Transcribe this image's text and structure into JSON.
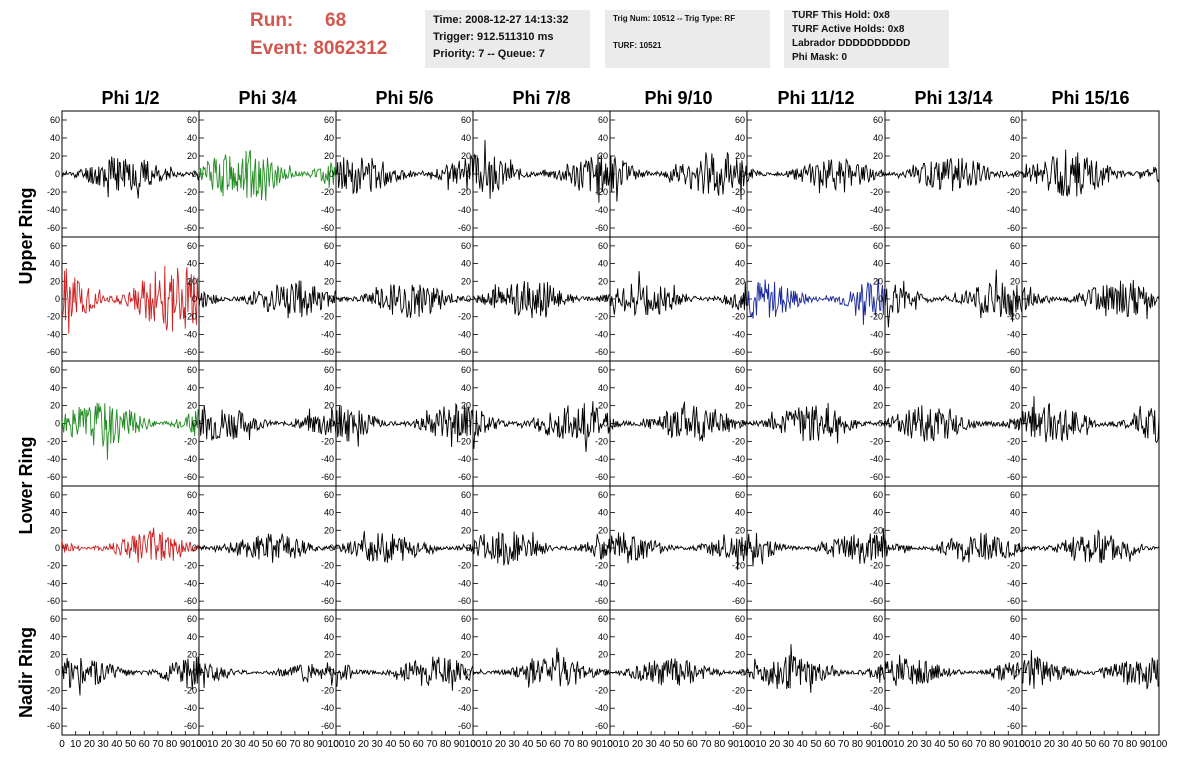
{
  "header": {
    "run_label": "Run:",
    "run_value": "68",
    "event_label": "Event:",
    "event_value": "8062312",
    "time_box": {
      "time": "Time: 2008-12-27 14:13:32",
      "trigger": "Trigger: 912.511310 ms",
      "priority": "Priority: 7 -- Queue: 7"
    },
    "trig_box": {
      "trig": "Trig Num: 10512 -- Trig Type: RF",
      "turf": "TURF: 10521"
    },
    "turf_box": {
      "hold": "TURF This Hold: 0x8",
      "active": "TURF Active Holds: 0x8",
      "labrador": "Labrador DDDDDDDDDD",
      "mask": "Phi Mask: 0"
    }
  },
  "colors": {
    "header_red": "#d2584f",
    "trace_default": "#000000",
    "trace_green": "#228b22",
    "trace_red": "#cc2222",
    "trace_blue": "#1a2a9a",
    "info_bg": "#ebebeb"
  },
  "chart_data": {
    "type": "line",
    "title": "",
    "columns": [
      "Phi 1/2",
      "Phi 3/4",
      "Phi 5/6",
      "Phi 7/8",
      "Phi 9/10",
      "Phi 11/12",
      "Phi 13/14",
      "Phi 15/16"
    ],
    "rows": [
      "Upper Ring",
      "Lower Ring",
      "Nadir Ring"
    ],
    "xlim": [
      0,
      100
    ],
    "ylim": [
      -70,
      70
    ],
    "x_ticks": [
      0,
      10,
      20,
      30,
      40,
      50,
      60,
      70,
      80,
      90,
      100
    ],
    "x_tick_labels": [
      "0",
      "10",
      "20",
      "30",
      "40",
      "50",
      "60",
      "70",
      "80",
      "90",
      "100"
    ],
    "y_ticks": [
      -60,
      -40,
      -20,
      0,
      20,
      40,
      60
    ],
    "y_tick_labels": [
      "-60",
      "-40",
      "-20",
      "0",
      "20",
      "40",
      "60"
    ],
    "panels": [
      {
        "row": 0,
        "col": 0,
        "color": "black",
        "amp": 22,
        "seed": 11
      },
      {
        "row": 0,
        "col": 1,
        "color": "green",
        "amp": 30,
        "seed": 12
      },
      {
        "row": 0,
        "col": 2,
        "color": "black",
        "amp": 22,
        "seed": 13
      },
      {
        "row": 0,
        "col": 3,
        "color": "black",
        "amp": 24,
        "seed": 14
      },
      {
        "row": 0,
        "col": 4,
        "color": "black",
        "amp": 26,
        "seed": 15
      },
      {
        "row": 0,
        "col": 5,
        "color": "black",
        "amp": 18,
        "seed": 16
      },
      {
        "row": 0,
        "col": 6,
        "color": "black",
        "amp": 20,
        "seed": 17
      },
      {
        "row": 0,
        "col": 7,
        "color": "black",
        "amp": 26,
        "seed": 18
      },
      {
        "row": 1,
        "col": 0,
        "color": "red",
        "amp": 40,
        "seed": 21
      },
      {
        "row": 1,
        "col": 1,
        "color": "black",
        "amp": 22,
        "seed": 22
      },
      {
        "row": 1,
        "col": 2,
        "color": "black",
        "amp": 22,
        "seed": 23
      },
      {
        "row": 1,
        "col": 3,
        "color": "black",
        "amp": 22,
        "seed": 24
      },
      {
        "row": 1,
        "col": 4,
        "color": "black",
        "amp": 20,
        "seed": 25
      },
      {
        "row": 1,
        "col": 5,
        "color": "blue",
        "amp": 24,
        "seed": 26
      },
      {
        "row": 1,
        "col": 6,
        "color": "black",
        "amp": 22,
        "seed": 27
      },
      {
        "row": 1,
        "col": 7,
        "color": "black",
        "amp": 22,
        "seed": 28
      },
      {
        "row": 2,
        "col": 0,
        "color": "green",
        "amp": 26,
        "seed": 31
      },
      {
        "row": 2,
        "col": 1,
        "color": "black",
        "amp": 20,
        "seed": 32
      },
      {
        "row": 2,
        "col": 2,
        "color": "black",
        "amp": 22,
        "seed": 33
      },
      {
        "row": 2,
        "col": 3,
        "color": "black",
        "amp": 24,
        "seed": 34
      },
      {
        "row": 2,
        "col": 4,
        "color": "black",
        "amp": 22,
        "seed": 35
      },
      {
        "row": 2,
        "col": 5,
        "color": "black",
        "amp": 22,
        "seed": 36
      },
      {
        "row": 2,
        "col": 6,
        "color": "black",
        "amp": 22,
        "seed": 37
      },
      {
        "row": 2,
        "col": 7,
        "color": "black",
        "amp": 24,
        "seed": 38
      },
      {
        "row": 3,
        "col": 0,
        "color": "red",
        "amp": 20,
        "seed": 41
      },
      {
        "row": 3,
        "col": 1,
        "color": "black",
        "amp": 18,
        "seed": 42
      },
      {
        "row": 3,
        "col": 2,
        "color": "black",
        "amp": 18,
        "seed": 43
      },
      {
        "row": 3,
        "col": 3,
        "color": "black",
        "amp": 20,
        "seed": 44
      },
      {
        "row": 3,
        "col": 4,
        "color": "black",
        "amp": 18,
        "seed": 45
      },
      {
        "row": 3,
        "col": 5,
        "color": "black",
        "amp": 18,
        "seed": 46
      },
      {
        "row": 3,
        "col": 6,
        "color": "black",
        "amp": 18,
        "seed": 47
      },
      {
        "row": 3,
        "col": 7,
        "color": "black",
        "amp": 20,
        "seed": 48
      },
      {
        "row": 4,
        "col": 0,
        "color": "black",
        "amp": 20,
        "seed": 51
      },
      {
        "row": 4,
        "col": 1,
        "color": "black",
        "amp": 12,
        "seed": 52
      },
      {
        "row": 4,
        "col": 2,
        "color": "black",
        "amp": 18,
        "seed": 53
      },
      {
        "row": 4,
        "col": 3,
        "color": "black",
        "amp": 18,
        "seed": 54
      },
      {
        "row": 4,
        "col": 4,
        "color": "black",
        "amp": 16,
        "seed": 55
      },
      {
        "row": 4,
        "col": 5,
        "color": "black",
        "amp": 20,
        "seed": 56
      },
      {
        "row": 4,
        "col": 6,
        "color": "black",
        "amp": 16,
        "seed": 57
      },
      {
        "row": 4,
        "col": 7,
        "color": "black",
        "amp": 20,
        "seed": 58
      }
    ]
  }
}
